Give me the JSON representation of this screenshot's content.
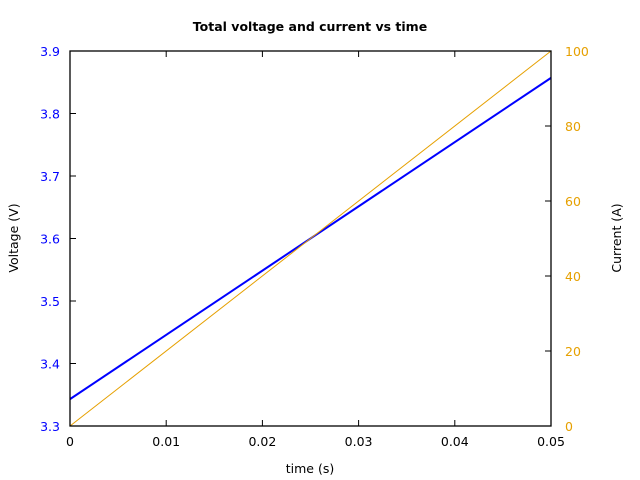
{
  "chart_data": {
    "type": "line",
    "title": "Total voltage and current vs time",
    "xlabel": "time (s)",
    "ylabel": "Voltage (V)",
    "y2label": "Current (A)",
    "xlim": [
      0,
      0.05
    ],
    "ylim": [
      3.3,
      3.9
    ],
    "y2lim": [
      0,
      100
    ],
    "grid": false,
    "legend": null,
    "x_ticks": [
      "0",
      "0.01",
      "0.02",
      "0.03",
      "0.04",
      "0.05"
    ],
    "y_ticks": [
      "3.3",
      "3.4",
      "3.5",
      "3.6",
      "3.7",
      "3.8",
      "3.9"
    ],
    "y2_ticks": [
      "0",
      "20",
      "40",
      "60",
      "80",
      "100"
    ],
    "x": [
      0,
      0.05
    ],
    "series": [
      {
        "name": "Voltage",
        "axis": "left",
        "color": "#0000ff",
        "values": [
          3.343,
          3.857
        ]
      },
      {
        "name": "Current",
        "axis": "right",
        "color": "#e6a000",
        "values": [
          0,
          100
        ]
      }
    ]
  },
  "colors": {
    "voltage_axis": "#0000ff",
    "current_axis": "#e6a000",
    "frame": "#000000"
  }
}
